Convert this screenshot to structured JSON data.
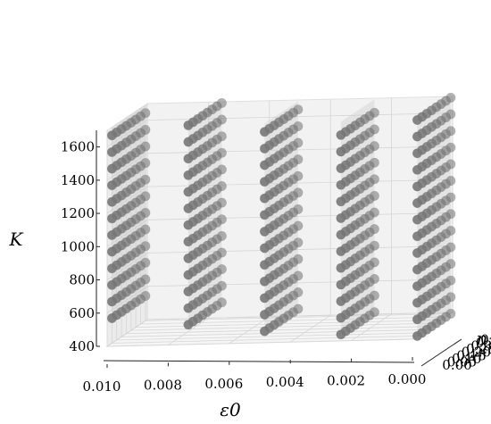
{
  "chart_data": {
    "type": "scatter",
    "projection": "3d",
    "grid": true,
    "x_axis": {
      "label": "ε0",
      "ticks": [
        "0.010",
        "0.008",
        "0.006",
        "0.004",
        "0.002",
        "0.000"
      ],
      "lim": [
        0.0,
        0.01
      ]
    },
    "y_axis": {
      "label": "n",
      "ticks": [
        "0.00",
        "0.05",
        "0.10",
        "0.15",
        "0.20",
        "0.25",
        "0.30",
        "0.35",
        "0.40"
      ],
      "lim": [
        0.0,
        0.42
      ]
    },
    "z_axis": {
      "label": "K",
      "ticks": [
        "400",
        "600",
        "800",
        "1000",
        "1200",
        "1400",
        "1600"
      ],
      "lim": [
        400,
        1700
      ]
    },
    "marker_color": "#777777",
    "plane_color": "#c8c8c8",
    "eps_levels": [
      0.01,
      0.0075,
      0.005,
      0.0025,
      0.0
    ],
    "n_levels": [
      0.05,
      0.1,
      0.15,
      0.2,
      0.25,
      0.3,
      0.35,
      0.4
    ],
    "k_range_per_eps": [
      {
        "eps": 0.01,
        "k_min": 550,
        "k_max": 1700
      },
      {
        "eps": 0.0075,
        "k_min": 500,
        "k_max": 1700
      },
      {
        "eps": 0.005,
        "k_min": 450,
        "k_max": 1700
      },
      {
        "eps": 0.0025,
        "k_min": 420,
        "k_max": 1700
      },
      {
        "eps": 0.0,
        "k_min": 400,
        "k_max": 1700
      }
    ],
    "k_step": 100
  }
}
